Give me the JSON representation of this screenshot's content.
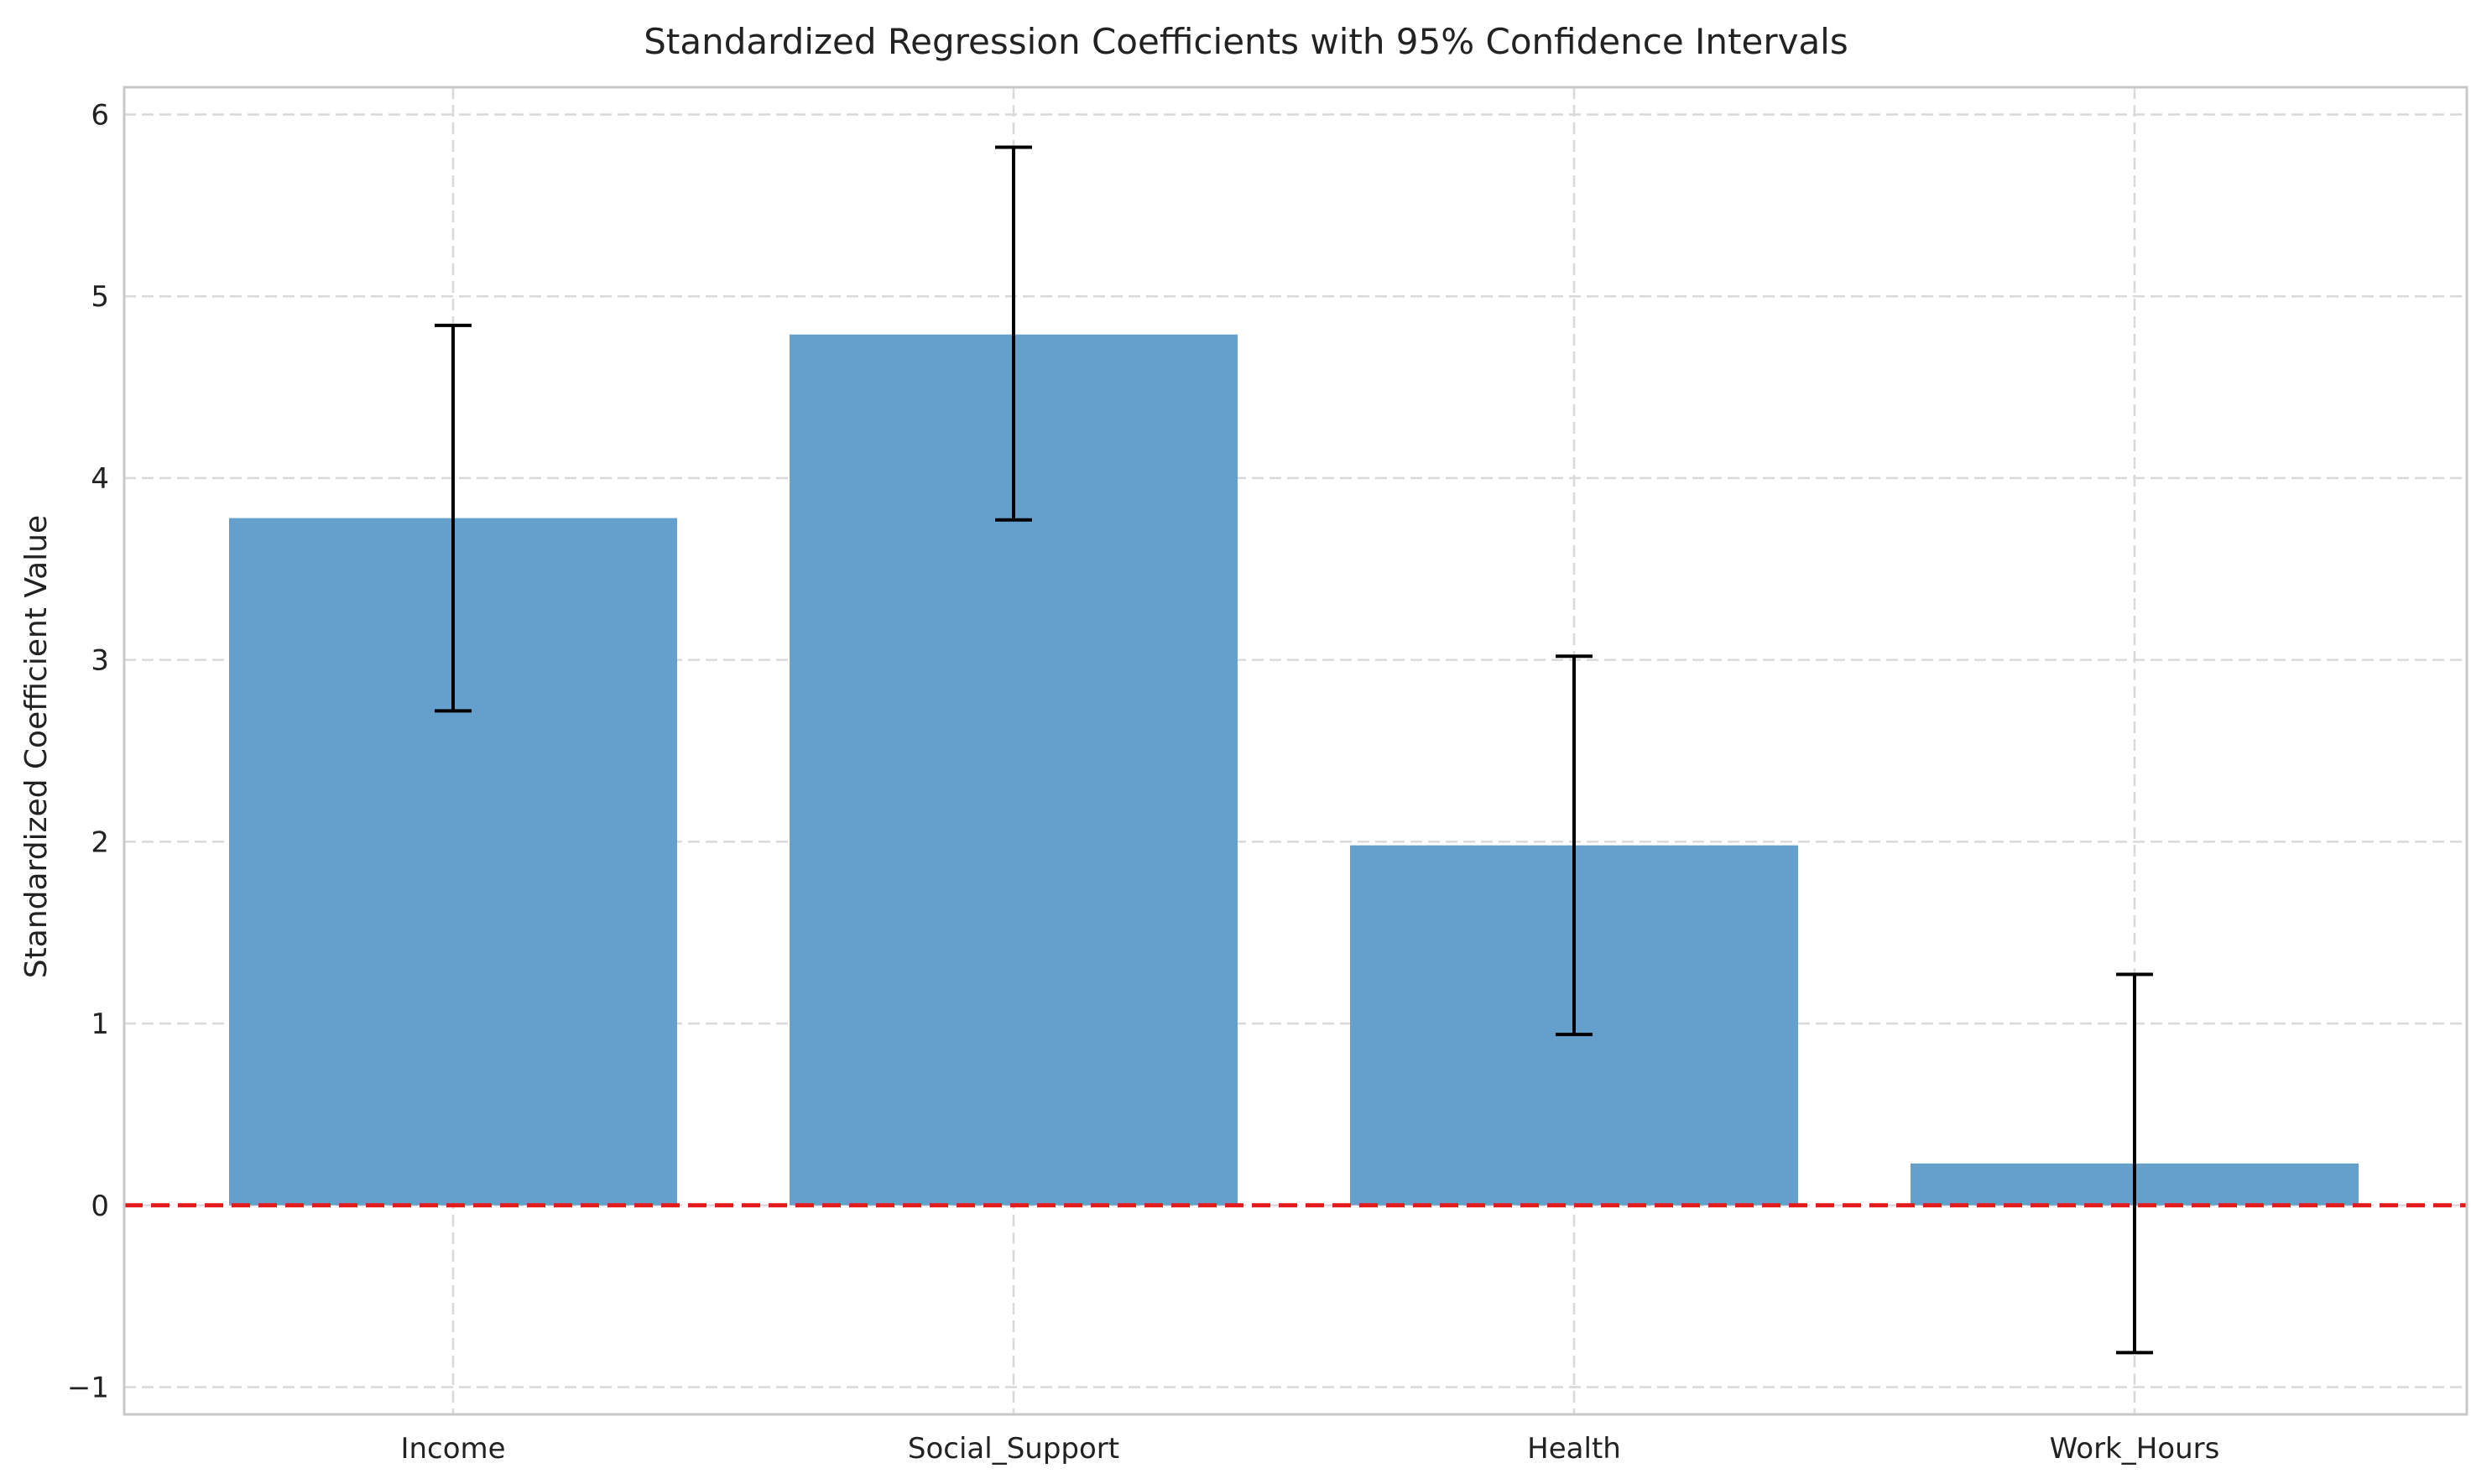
{
  "chart_data": {
    "type": "bar",
    "title": "Standardized Regression Coefficients with 95% Confidence Intervals",
    "xlabel": "",
    "ylabel": "Standardized Coefficient Value",
    "categories": [
      "Income",
      "Social_Support",
      "Health",
      "Work_Hours"
    ],
    "values": [
      3.78,
      4.79,
      1.98,
      0.23
    ],
    "ci_lower": [
      2.72,
      3.77,
      0.94,
      -0.81
    ],
    "ci_upper": [
      4.84,
      5.82,
      3.02,
      1.27
    ],
    "ylim": [
      -1.15,
      6.15
    ],
    "yticks": [
      -1,
      0,
      1,
      2,
      3,
      4,
      5,
      6
    ],
    "ytick_labels": [
      "−1",
      "0",
      "1",
      "2",
      "3",
      "4",
      "5",
      "6"
    ],
    "reference_line": {
      "y": 0,
      "style": "dashed",
      "color": "#e31a1c"
    },
    "grid": true,
    "colors": {
      "bar": "#64a0cb",
      "error_bar": "#000000",
      "grid": "#d9d9d9",
      "frame": "#c8c8c8"
    }
  }
}
